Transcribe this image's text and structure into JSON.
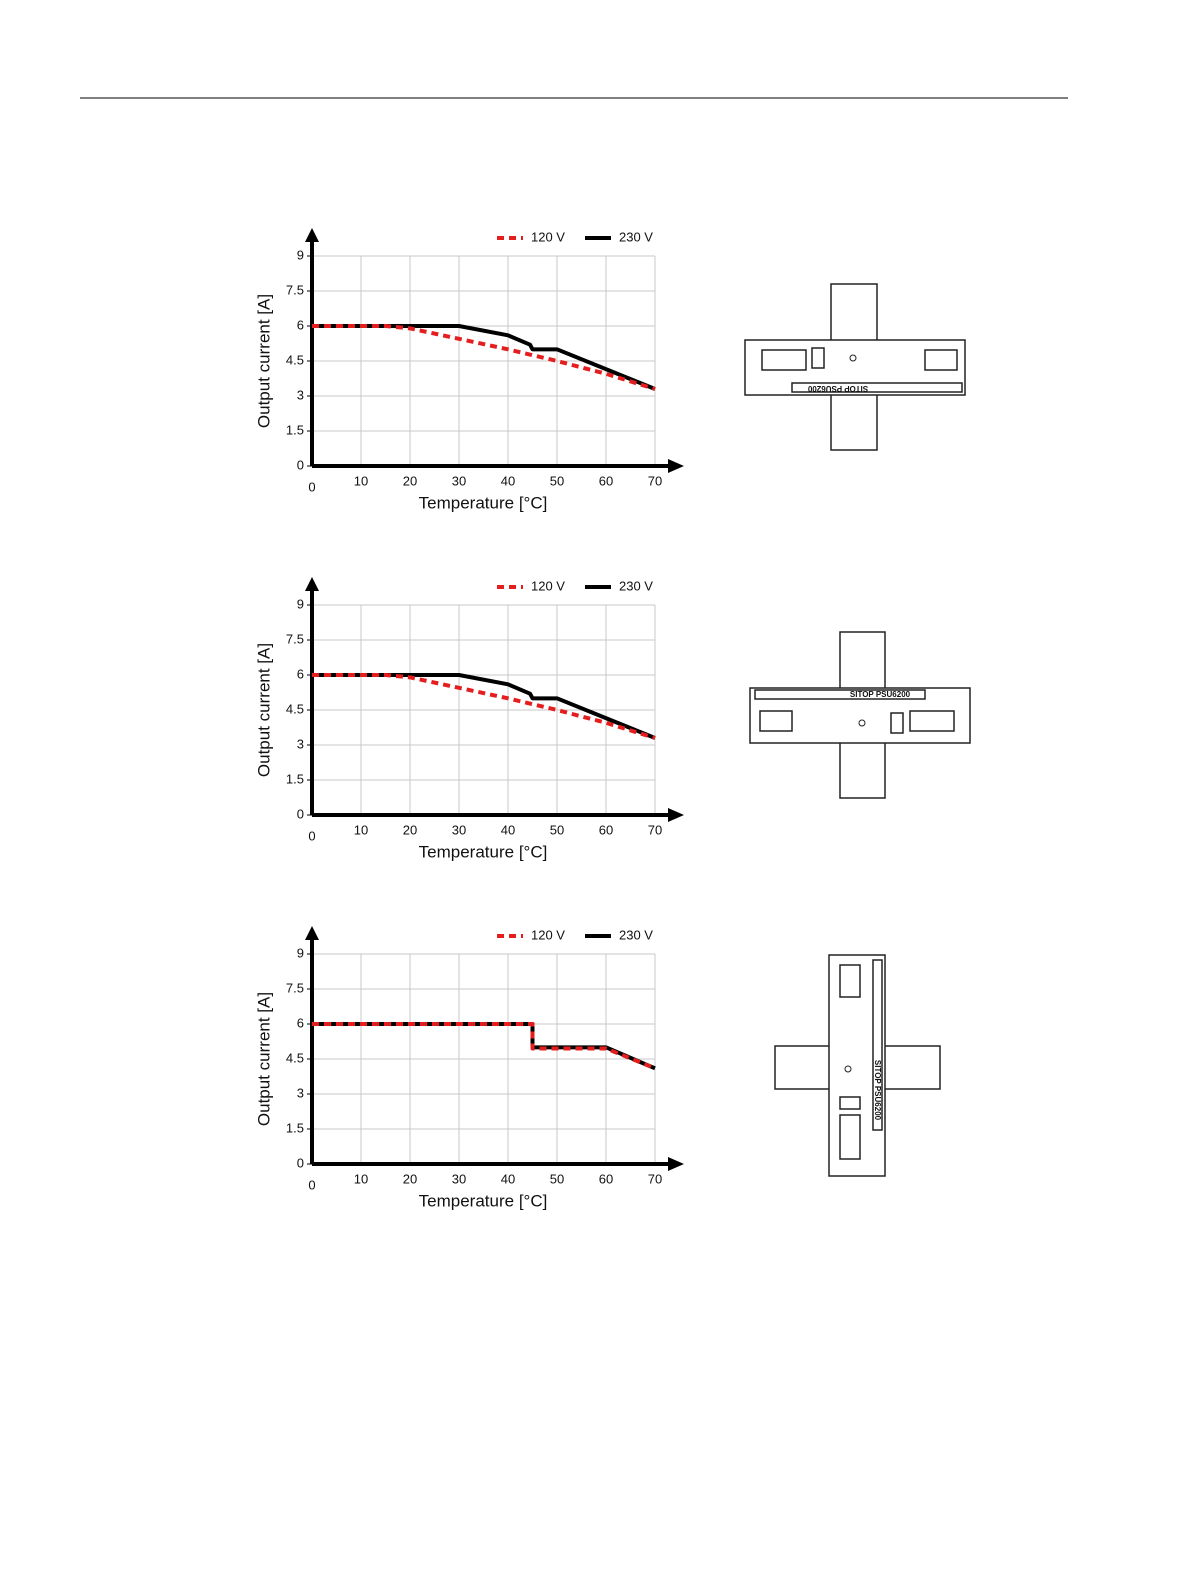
{
  "chart_data": [
    {
      "type": "line",
      "xlabel": "Temperature [°C]",
      "ylabel": "Output current [A]",
      "xlim": [
        0,
        70
      ],
      "ylim": [
        0,
        9
      ],
      "xticks": [
        0,
        10,
        20,
        30,
        40,
        50,
        60,
        70
      ],
      "yticks": [
        0,
        1.5,
        3,
        4.5,
        6,
        7.5,
        9
      ],
      "grid": true,
      "legend": "top-right",
      "series": [
        {
          "name": "120 V",
          "color": "#e41e1e",
          "dash": true,
          "x": [
            0,
            15,
            20,
            30,
            40,
            50,
            60,
            70
          ],
          "values": [
            6,
            6,
            5.9,
            5.45,
            5.0,
            4.5,
            3.95,
            3.3
          ]
        },
        {
          "name": "230 V",
          "color": "#000000",
          "dash": false,
          "x": [
            0,
            30,
            40,
            44.5,
            45,
            50,
            70
          ],
          "values": [
            6,
            6,
            5.6,
            5.2,
            5,
            5,
            3.3
          ]
        }
      ]
    },
    {
      "type": "line",
      "xlabel": "Temperature [°C]",
      "ylabel": "Output current [A]",
      "xlim": [
        0,
        70
      ],
      "ylim": [
        0,
        9
      ],
      "xticks": [
        0,
        10,
        20,
        30,
        40,
        50,
        60,
        70
      ],
      "yticks": [
        0,
        1.5,
        3,
        4.5,
        6,
        7.5,
        9
      ],
      "grid": true,
      "legend": "top-right",
      "series": [
        {
          "name": "120 V",
          "color": "#e41e1e",
          "dash": true,
          "x": [
            0,
            15,
            20,
            30,
            40,
            50,
            60,
            70
          ],
          "values": [
            6,
            6,
            5.9,
            5.45,
            5.0,
            4.5,
            3.95,
            3.3
          ]
        },
        {
          "name": "230 V",
          "color": "#000000",
          "dash": false,
          "x": [
            0,
            30,
            40,
            44.5,
            45,
            50,
            70
          ],
          "values": [
            6,
            6,
            5.6,
            5.2,
            5,
            5,
            3.3
          ]
        }
      ]
    },
    {
      "type": "line",
      "xlabel": "Temperature [°C]",
      "ylabel": "Output current [A]",
      "xlim": [
        0,
        70
      ],
      "ylim": [
        0,
        9
      ],
      "xticks": [
        0,
        10,
        20,
        30,
        40,
        50,
        60,
        70
      ],
      "yticks": [
        0,
        1.5,
        3,
        4.5,
        6,
        7.5,
        9
      ],
      "grid": true,
      "legend": "top-right",
      "series": [
        {
          "name": "120 V",
          "color": "#e41e1e",
          "dash": true,
          "x": [
            0,
            45,
            45,
            60,
            70
          ],
          "values": [
            6,
            6,
            4.95,
            4.95,
            4.1
          ]
        },
        {
          "name": "230 V",
          "color": "#000000",
          "dash": false,
          "x": [
            0,
            45,
            45,
            60,
            70
          ],
          "values": [
            6,
            6,
            5,
            5,
            4.1
          ]
        }
      ]
    }
  ],
  "devices": [
    {
      "label": "SITOP PSU6200"
    },
    {
      "label": "SITOP PSU6200"
    },
    {
      "label": "SITOP PSU6200"
    }
  ]
}
